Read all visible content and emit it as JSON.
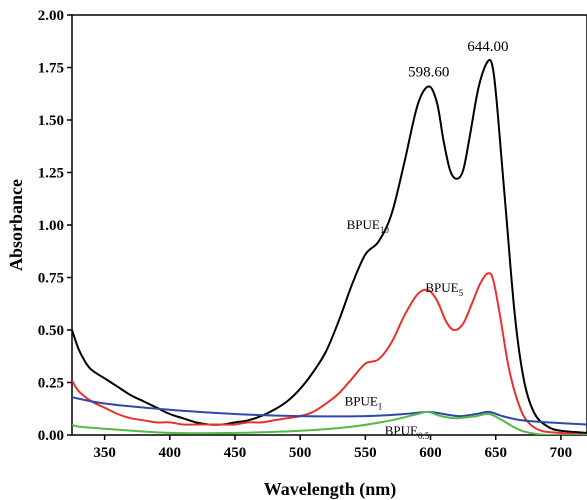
{
  "chart_data": {
    "type": "line",
    "xlabel": "Wavelength (nm)",
    "ylabel": "Absorbance",
    "xlim": [
      325,
      720
    ],
    "ylim": [
      0,
      2.0
    ],
    "x_ticks": [
      350,
      400,
      450,
      500,
      550,
      600,
      650,
      700
    ],
    "y_ticks": [
      "0.00",
      "0.25",
      "0.50",
      "0.75",
      "1.00",
      "1.25",
      "1.50",
      "1.75",
      "2.00"
    ],
    "grid": false,
    "annotations": [
      {
        "text": "598.60",
        "x": 598.6,
        "y": 1.66
      },
      {
        "text": "644.00",
        "x": 644,
        "y": 1.78
      }
    ],
    "series": [
      {
        "name": "BPUE10",
        "label_main": "BPUE",
        "label_sub": "10",
        "label_at": [
          568,
          0.98
        ],
        "color": "#000000",
        "points": [
          [
            325,
            0.5
          ],
          [
            330,
            0.41
          ],
          [
            335,
            0.35
          ],
          [
            340,
            0.31
          ],
          [
            350,
            0.27
          ],
          [
            360,
            0.23
          ],
          [
            370,
            0.19
          ],
          [
            380,
            0.16
          ],
          [
            390,
            0.13
          ],
          [
            400,
            0.1
          ],
          [
            410,
            0.08
          ],
          [
            420,
            0.06
          ],
          [
            430,
            0.05
          ],
          [
            440,
            0.05
          ],
          [
            450,
            0.06
          ],
          [
            460,
            0.07
          ],
          [
            470,
            0.09
          ],
          [
            480,
            0.12
          ],
          [
            490,
            0.16
          ],
          [
            500,
            0.22
          ],
          [
            510,
            0.3
          ],
          [
            520,
            0.4
          ],
          [
            530,
            0.55
          ],
          [
            540,
            0.72
          ],
          [
            550,
            0.86
          ],
          [
            560,
            0.92
          ],
          [
            570,
            1.05
          ],
          [
            580,
            1.3
          ],
          [
            590,
            1.57
          ],
          [
            598.6,
            1.66
          ],
          [
            605,
            1.58
          ],
          [
            610,
            1.4
          ],
          [
            615,
            1.26
          ],
          [
            620,
            1.22
          ],
          [
            625,
            1.26
          ],
          [
            630,
            1.42
          ],
          [
            637,
            1.66
          ],
          [
            644,
            1.78
          ],
          [
            648,
            1.74
          ],
          [
            652,
            1.5
          ],
          [
            658,
            1.05
          ],
          [
            665,
            0.55
          ],
          [
            672,
            0.25
          ],
          [
            680,
            0.1
          ],
          [
            690,
            0.04
          ],
          [
            700,
            0.02
          ],
          [
            720,
            0.01
          ]
        ]
      },
      {
        "name": "BPUE5",
        "label_main": "BPUE",
        "label_sub": "5",
        "label_at": [
          625,
          0.68
        ],
        "color": "#e8312c",
        "points": [
          [
            325,
            0.26
          ],
          [
            330,
            0.21
          ],
          [
            340,
            0.16
          ],
          [
            350,
            0.13
          ],
          [
            360,
            0.1
          ],
          [
            370,
            0.08
          ],
          [
            380,
            0.07
          ],
          [
            390,
            0.06
          ],
          [
            400,
            0.06
          ],
          [
            410,
            0.05
          ],
          [
            420,
            0.05
          ],
          [
            430,
            0.05
          ],
          [
            440,
            0.05
          ],
          [
            450,
            0.05
          ],
          [
            460,
            0.06
          ],
          [
            470,
            0.06
          ],
          [
            480,
            0.07
          ],
          [
            490,
            0.08
          ],
          [
            500,
            0.09
          ],
          [
            510,
            0.11
          ],
          [
            520,
            0.15
          ],
          [
            530,
            0.2
          ],
          [
            540,
            0.27
          ],
          [
            550,
            0.34
          ],
          [
            560,
            0.36
          ],
          [
            570,
            0.44
          ],
          [
            580,
            0.57
          ],
          [
            590,
            0.67
          ],
          [
            598,
            0.69
          ],
          [
            605,
            0.64
          ],
          [
            612,
            0.54
          ],
          [
            618,
            0.5
          ],
          [
            625,
            0.53
          ],
          [
            632,
            0.63
          ],
          [
            638,
            0.72
          ],
          [
            644,
            0.77
          ],
          [
            648,
            0.74
          ],
          [
            653,
            0.58
          ],
          [
            660,
            0.32
          ],
          [
            668,
            0.14
          ],
          [
            675,
            0.06
          ],
          [
            685,
            0.02
          ],
          [
            700,
            0.01
          ],
          [
            720,
            0.0
          ]
        ]
      },
      {
        "name": "BPUE1",
        "label_main": "BPUE",
        "label_sub": "1",
        "label_at": [
          563,
          0.14
        ],
        "color": "#2e4aa8",
        "points": [
          [
            325,
            0.18
          ],
          [
            350,
            0.15
          ],
          [
            400,
            0.12
          ],
          [
            450,
            0.1
          ],
          [
            500,
            0.09
          ],
          [
            550,
            0.09
          ],
          [
            580,
            0.1
          ],
          [
            598,
            0.11
          ],
          [
            610,
            0.1
          ],
          [
            622,
            0.09
          ],
          [
            635,
            0.1
          ],
          [
            645,
            0.11
          ],
          [
            655,
            0.09
          ],
          [
            670,
            0.07
          ],
          [
            690,
            0.06
          ],
          [
            720,
            0.05
          ]
        ]
      },
      {
        "name": "BPUE0.5",
        "label_main": "BPUE",
        "label_sub": "0.5",
        "label_at": [
          599,
          0.0
        ],
        "color": "#56b848",
        "points": [
          [
            325,
            0.05
          ],
          [
            330,
            0.04
          ],
          [
            350,
            0.03
          ],
          [
            400,
            0.01
          ],
          [
            450,
            0.01
          ],
          [
            500,
            0.02
          ],
          [
            540,
            0.04
          ],
          [
            570,
            0.07
          ],
          [
            590,
            0.1
          ],
          [
            598,
            0.11
          ],
          [
            608,
            0.09
          ],
          [
            620,
            0.08
          ],
          [
            635,
            0.09
          ],
          [
            645,
            0.1
          ],
          [
            655,
            0.07
          ],
          [
            670,
            0.02
          ],
          [
            690,
            0.0
          ],
          [
            720,
            0.0
          ]
        ]
      }
    ]
  }
}
